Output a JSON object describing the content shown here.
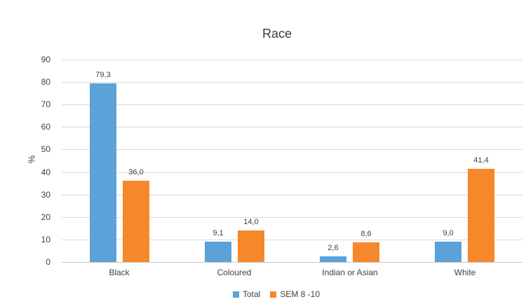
{
  "chart_data": {
    "type": "bar",
    "title": "Race",
    "xlabel": "",
    "ylabel": "%",
    "categories": [
      "Black",
      "Coloured",
      "Indian or Asian",
      "White"
    ],
    "series": [
      {
        "name": "Total",
        "color": "#5AA2D8",
        "values": [
          79.3,
          9.1,
          2.6,
          9.0
        ],
        "labels": [
          "79,3",
          "9,1",
          "2,6",
          "9,0"
        ]
      },
      {
        "name": "SEM 8 -10",
        "color": "#F6872B",
        "values": [
          36.0,
          14.0,
          8.6,
          41.4
        ],
        "labels": [
          "36,0",
          "14,0",
          "8,6",
          "41,4"
        ]
      }
    ],
    "ylim": [
      0,
      90
    ],
    "yticks": [
      0,
      10,
      20,
      30,
      40,
      50,
      60,
      70,
      80,
      90
    ],
    "grid": true,
    "legend_position": "bottom",
    "decimal_separator": ","
  },
  "colors": {
    "background": "#ffffff",
    "gridline": "#d9d9d9",
    "axis_line": "#c6c6c6",
    "text": "#404040",
    "title_text": "#3d3d3d",
    "series_total": "#5AA2D8",
    "series_sem": "#F6872B"
  }
}
